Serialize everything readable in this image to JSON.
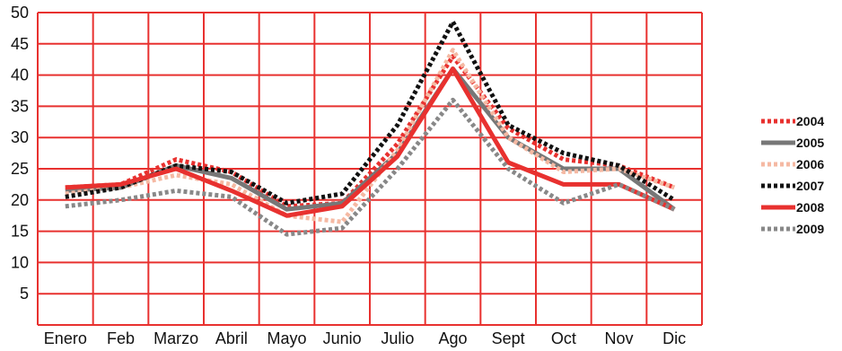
{
  "chart_data": {
    "type": "line",
    "categories": [
      "Enero",
      "Feb",
      "Marzo",
      "Abril",
      "Mayo",
      "Junio",
      "Julio",
      "Ago",
      "Sept",
      "Oct",
      "Nov",
      "Dic"
    ],
    "ylim": [
      0,
      50
    ],
    "yticks": [
      5,
      10,
      15,
      20,
      25,
      30,
      35,
      40,
      45,
      50
    ],
    "grid": true,
    "legend_position": "right",
    "colors": {
      "grid": "#e8312f",
      "axis": "#e8312f"
    },
    "series": [
      {
        "name": "2004",
        "color": "#e8312f",
        "dash": "dotted",
        "values": [
          22,
          22.5,
          26.5,
          24.5,
          19,
          19.5,
          29,
          43,
          31.5,
          26.5,
          25.5,
          22
        ]
      },
      {
        "name": "2005",
        "color": "#777777",
        "dash": "solid",
        "values": [
          21.5,
          22,
          25.5,
          23.5,
          18.5,
          19.5,
          27.5,
          41,
          30,
          25,
          25,
          18.5
        ]
      },
      {
        "name": "2006",
        "color": "#f5b9a3",
        "dash": "dotted",
        "values": [
          21,
          22,
          24,
          22.5,
          17.5,
          16.5,
          28,
          44,
          30,
          24.5,
          25,
          22
        ]
      },
      {
        "name": "2007",
        "color": "#111111",
        "dash": "dotted",
        "values": [
          20.5,
          22,
          25.5,
          24.5,
          19.5,
          21,
          32,
          48.5,
          32,
          27.5,
          25.5,
          20
        ]
      },
      {
        "name": "2008",
        "color": "#e8312f",
        "dash": "solid",
        "values": [
          22,
          22.5,
          25,
          21.5,
          17.5,
          19,
          27,
          41,
          26,
          22.5,
          22.5,
          18.5
        ]
      },
      {
        "name": "2009",
        "color": "#888888",
        "dash": "dotted",
        "values": [
          19,
          20,
          21.5,
          20.5,
          14.5,
          15.5,
          25,
          36,
          25,
          19.5,
          22.5,
          18.5
        ]
      }
    ]
  }
}
